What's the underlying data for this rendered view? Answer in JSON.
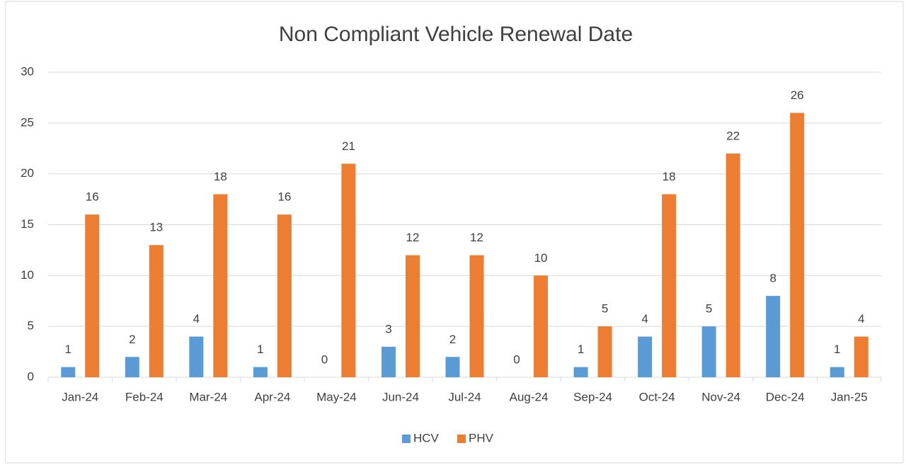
{
  "chart_data": {
    "type": "bar",
    "title": "Non Compliant Vehicle Renewal Date",
    "categories": [
      "Jan-24",
      "Feb-24",
      "Mar-24",
      "Apr-24",
      "May-24",
      "Jun-24",
      "Jul-24",
      "Aug-24",
      "Sep-24",
      "Oct-24",
      "Nov-24",
      "Dec-24",
      "Jan-25"
    ],
    "series": [
      {
        "name": "HCV",
        "color": "#5b9bd5",
        "values": [
          1,
          2,
          4,
          1,
          0,
          3,
          2,
          0,
          1,
          4,
          5,
          8,
          1
        ]
      },
      {
        "name": "PHV",
        "color": "#ed7d31",
        "values": [
          16,
          13,
          18,
          16,
          21,
          12,
          12,
          10,
          5,
          18,
          22,
          26,
          4
        ]
      }
    ],
    "ylim": [
      0,
      30
    ],
    "yticks": [
      0,
      5,
      10,
      15,
      20,
      25,
      30
    ],
    "grid": true,
    "legend": "bottom"
  }
}
